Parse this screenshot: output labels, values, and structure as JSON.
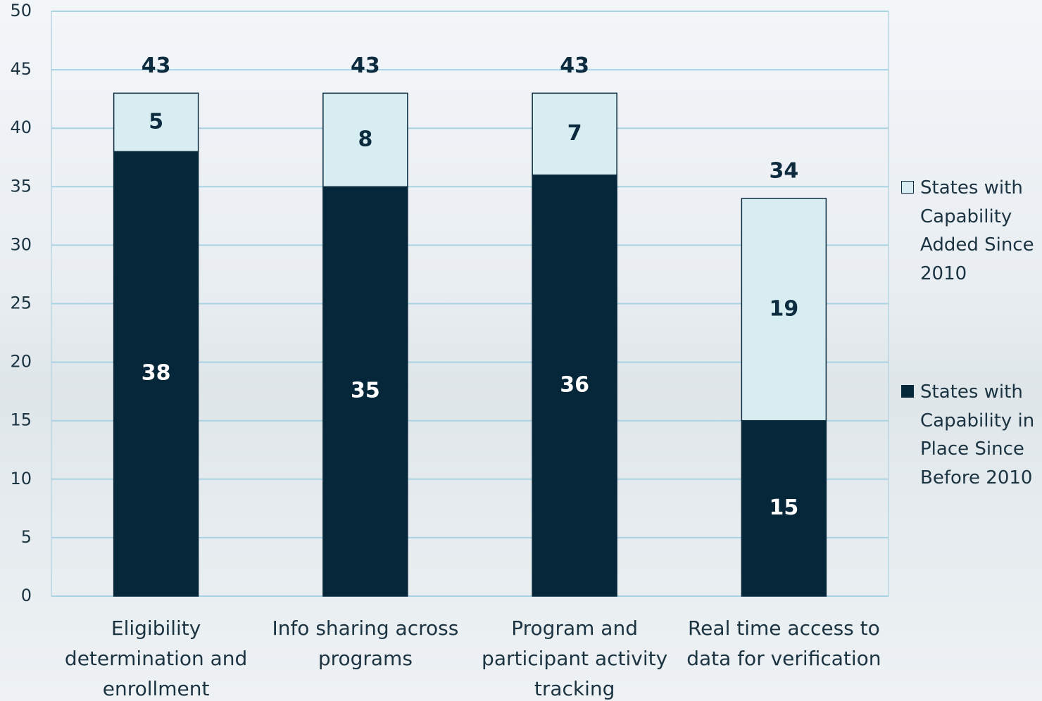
{
  "chart_data": {
    "type": "stacked-bar",
    "categories": [
      "Eligibility determination and enrollment",
      "Info sharing across programs",
      "Program and participant activity tracking",
      "Real time access to data for verification"
    ],
    "series": [
      {
        "name": "States with Capability in Place Since Before 2010",
        "color": "#06263a",
        "values": [
          38,
          35,
          36,
          15
        ]
      },
      {
        "name": "States with Capability Added Since 2010",
        "color": "#d7edf2",
        "values": [
          5,
          8,
          7,
          19
        ]
      }
    ],
    "totals": [
      43,
      43,
      43,
      34
    ],
    "ylim": [
      0,
      50
    ],
    "yticks": [
      0,
      5,
      10,
      15,
      20,
      25,
      30,
      35,
      40,
      45,
      50
    ],
    "grid": true
  }
}
